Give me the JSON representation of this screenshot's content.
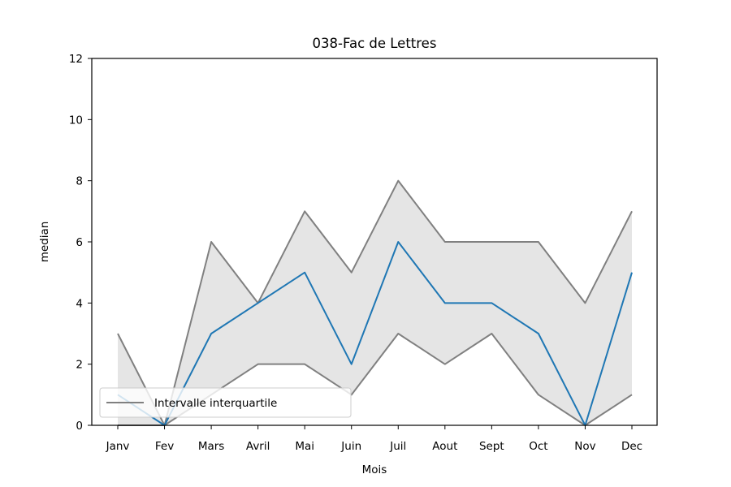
{
  "chart_data": {
    "type": "line",
    "title": "038-Fac de Lettres",
    "xlabel": "Mois",
    "ylabel": "median",
    "categories": [
      "Janv",
      "Fev",
      "Mars",
      "Avril",
      "Mai",
      "Juin",
      "Juil",
      "Aout",
      "Sept",
      "Oct",
      "Nov",
      "Dec"
    ],
    "ylim": [
      0,
      12
    ],
    "yticks": [
      0,
      2,
      4,
      6,
      8,
      10,
      12
    ],
    "grid": false,
    "legend_position": "lower-left",
    "series": [
      {
        "values": [
          1,
          0,
          3,
          4,
          5,
          2,
          6,
          4,
          4,
          3,
          0,
          5
        ],
        "color": "#1f77b4"
      },
      {
        "values": [
          3,
          0,
          6,
          4,
          7,
          5,
          8,
          6,
          6,
          6,
          4,
          7
        ],
        "color": "#808080"
      },
      {
        "values": [
          0,
          0,
          1,
          2,
          2,
          1,
          3,
          2,
          3,
          1,
          0,
          1
        ],
        "color": "#808080"
      }
    ],
    "band": {
      "lower_series": 2,
      "upper_series": 1,
      "fill": "#e5e5e5"
    },
    "legend": [
      {
        "label": "Intervalle interquartile",
        "color": "#808080"
      }
    ]
  }
}
